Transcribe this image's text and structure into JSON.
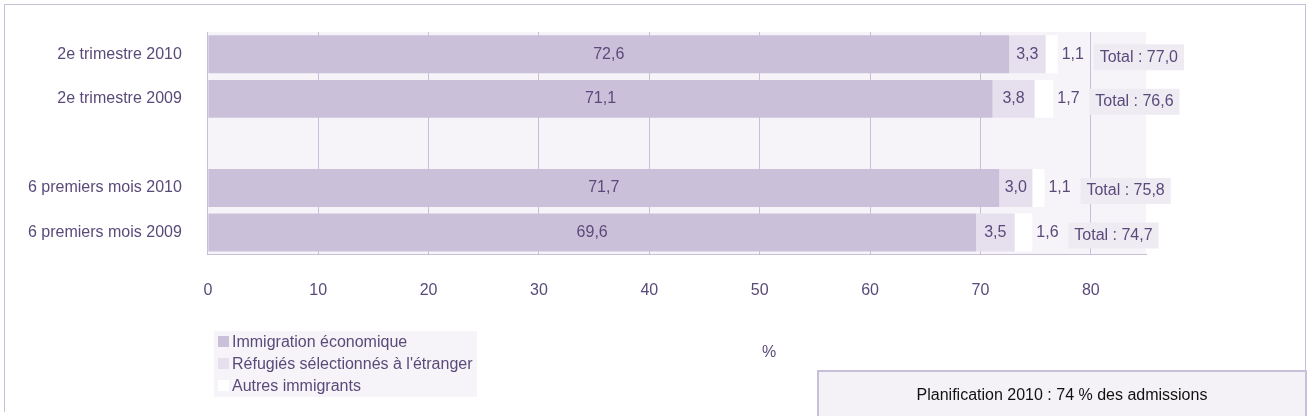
{
  "chart_data": {
    "type": "bar",
    "orientation": "horizontal",
    "stacked": true,
    "categories": [
      "2e trimestre 2010",
      "2e trimestre 2009",
      null,
      "6 premiers mois 2010",
      "6 premiers mois 2009"
    ],
    "series": [
      {
        "name": "Immigration économique",
        "color": "#cbc0da",
        "values": [
          72.6,
          71.1,
          null,
          71.7,
          69.6
        ],
        "value_labels": [
          "72,6",
          "71,1",
          null,
          "71,7",
          "69,6"
        ]
      },
      {
        "name": "Réfugiés sélectionnés à l'étranger",
        "color": "#e6e0ee",
        "values": [
          3.3,
          3.8,
          null,
          3.0,
          3.5
        ],
        "value_labels": [
          "3,3",
          "3,8",
          null,
          "3,0",
          "3,5"
        ]
      },
      {
        "name": "Autres immigrants",
        "color": "#ffffff",
        "values": [
          1.1,
          1.7,
          null,
          1.1,
          1.6
        ],
        "value_labels": [
          "1,1",
          "1,7",
          null,
          "1,1",
          "1,6"
        ]
      }
    ],
    "totals": [
      "Total : 77,0",
      "Total : 76,6",
      null,
      "Total : 75,8",
      "Total : 74,7"
    ],
    "xlabel": "%",
    "xlim": [
      0,
      85
    ],
    "xticks": [
      0,
      10,
      20,
      30,
      40,
      50,
      60,
      70,
      80
    ],
    "grid": "x",
    "legend": "bottom left",
    "annotations": [
      "Planification 2010 : 74 % des admissions"
    ]
  }
}
